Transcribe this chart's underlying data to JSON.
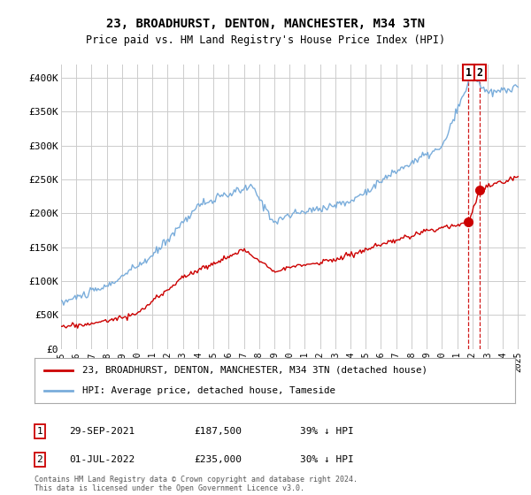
{
  "title": "23, BROADHURST, DENTON, MANCHESTER, M34 3TN",
  "subtitle": "Price paid vs. HM Land Registry's House Price Index (HPI)",
  "legend_line1": "23, BROADHURST, DENTON, MANCHESTER, M34 3TN (detached house)",
  "legend_line2": "HPI: Average price, detached house, Tameside",
  "footnote": "Contains HM Land Registry data © Crown copyright and database right 2024.\nThis data is licensed under the Open Government Licence v3.0.",
  "table": [
    {
      "num": "1",
      "date": "29-SEP-2021",
      "price": "£187,500",
      "pct": "39% ↓ HPI"
    },
    {
      "num": "2",
      "date": "01-JUL-2022",
      "price": "£235,000",
      "pct": "30% ↓ HPI"
    }
  ],
  "ylim": [
    0,
    420000
  ],
  "yticks": [
    0,
    50000,
    100000,
    150000,
    200000,
    250000,
    300000,
    350000,
    400000
  ],
  "ytick_labels": [
    "£0",
    "£50K",
    "£100K",
    "£150K",
    "£200K",
    "£250K",
    "£300K",
    "£350K",
    "£400K"
  ],
  "sale1_year": 2021.75,
  "sale1_price": 187500,
  "sale2_year": 2022.5,
  "sale2_price": 235000,
  "red_color": "#cc0000",
  "blue_color": "#7aaddb",
  "vline_color": "#cc0000",
  "box_color": "#cc0000",
  "grid_color": "#cccccc",
  "bg_color": "#ffffff"
}
